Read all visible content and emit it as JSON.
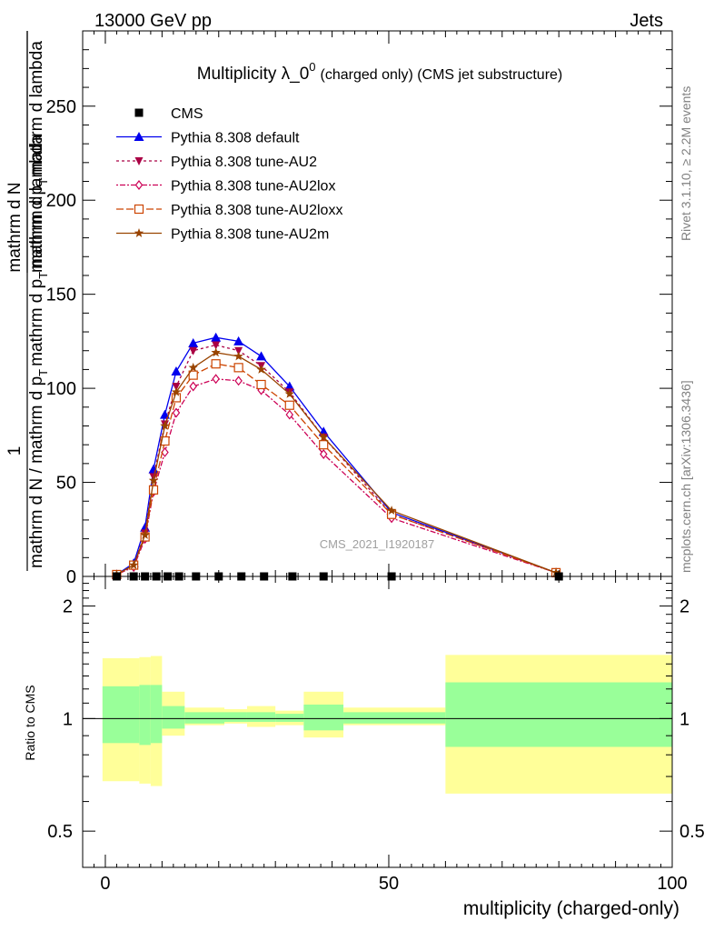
{
  "header": {
    "left": "13000 GeV pp",
    "right": "Jets"
  },
  "side_labels": {
    "upper": "Rivet 3.1.10, ≥ 2.2M events",
    "lower": "mcplots.cern.ch [arXiv:1306.3436]"
  },
  "watermark": "CMS_2021_I1920187",
  "colors": {
    "band_inner": "#99ff99",
    "band_outer": "#ffff99"
  },
  "chart_data": [
    {
      "type": "line",
      "title": "Multiplicity λ_0⁰",
      "title_parts": {
        "main": "Multiplicity λ_0",
        "sup": "0",
        "small": "(charged only) (CMS jet substructure)"
      },
      "ylabel_parts": {
        "num": "1",
        "den": "mathrm d N / mathrm d p_T mathrm d p_T mathrm d N",
        "den_a": "mathrm d N / mathrm d p",
        "den_sub1": "T",
        "den_b": "mathrm d p",
        "den_sub2": "T",
        "den_c": "mathrm d lambda",
        "num2": "mathrm d",
        "num3": "N",
        "den2": "mathrm d p",
        "den2_sub": "T",
        "den2_b": "mathrm d lambda"
      },
      "ylabel": "1 / mathrm d N / mathrm d p_T mathrm d p_T mathrm d N / mathrm d p_T mathrm d lambda",
      "xlim": [
        -4,
        100
      ],
      "ylim": [
        0,
        290
      ],
      "y_ticks": [
        0,
        50,
        100,
        150,
        200,
        250
      ],
      "legend_position": "top-left",
      "series": [
        {
          "name": "CMS",
          "color": "#000000",
          "marker": "square",
          "dash": "none",
          "x": [
            2,
            5,
            7,
            9,
            11,
            13,
            16,
            20,
            24,
            28,
            33,
            38.5,
            50.5,
            80
          ],
          "y": [
            0,
            0,
            0,
            0,
            0,
            0,
            0,
            0,
            0,
            0,
            0,
            0,
            0,
            0
          ]
        },
        {
          "name": "Pythia 8.308 default",
          "color": "#0000ee",
          "marker": "triangle-up",
          "dash": "none",
          "x": [
            2,
            5,
            7,
            8.5,
            10.5,
            12.5,
            15.5,
            19.5,
            23.5,
            27.5,
            32.5,
            38.5,
            50.5,
            79.5
          ],
          "y": [
            1,
            7,
            26,
            57,
            86,
            109,
            124,
            127,
            125,
            117,
            101,
            77,
            34,
            2
          ]
        },
        {
          "name": "Pythia 8.308 tune-AU2",
          "color": "#aa0044",
          "marker": "triangle-down",
          "dash": "3,3",
          "x": [
            2,
            5,
            7,
            8.5,
            10.5,
            12.5,
            15.5,
            19.5,
            23.5,
            27.5,
            32.5,
            38.5,
            50.5,
            79.5
          ],
          "y": [
            1,
            6,
            23,
            53,
            81,
            101,
            120,
            123,
            120,
            112,
            98,
            74,
            33,
            2
          ]
        },
        {
          "name": "Pythia 8.308 tune-AU2lox",
          "color": "#cc0055",
          "marker": "diamond",
          "dash": "2,2,6,2",
          "x": [
            2,
            5,
            7,
            8.5,
            10.5,
            12.5,
            15.5,
            19.5,
            23.5,
            27.5,
            32.5,
            38.5,
            50.5,
            79.5
          ],
          "y": [
            1,
            5,
            20,
            45,
            66,
            87,
            101,
            105,
            104,
            99,
            86,
            65,
            31,
            2
          ]
        },
        {
          "name": "Pythia 8.308 tune-AU2loxx",
          "color": "#cc4400",
          "marker": "square-open",
          "dash": "8,3",
          "x": [
            2,
            5,
            7,
            8.5,
            10.5,
            12.5,
            15.5,
            19.5,
            23.5,
            27.5,
            32.5,
            38.5,
            50.5,
            79.5
          ],
          "y": [
            1,
            6,
            21,
            46,
            72,
            95,
            107,
            113,
            111,
            102,
            91,
            70,
            33,
            2
          ]
        },
        {
          "name": "Pythia 8.308 tune-AU2m",
          "color": "#994400",
          "marker": "star",
          "dash": "none",
          "x": [
            2,
            5,
            7,
            8.5,
            10.5,
            12.5,
            15.5,
            19.5,
            23.5,
            27.5,
            32.5,
            38.5,
            50.5,
            79.5
          ],
          "y": [
            1,
            6,
            22,
            51,
            80,
            98,
            111,
            119,
            117,
            110,
            97,
            74,
            35,
            2
          ]
        }
      ]
    },
    {
      "type": "area",
      "ylabel": "Ratio to CMS",
      "xlabel": "multiplicity (charged-only)",
      "xlim": [
        -4,
        100
      ],
      "ylim": [
        0.4,
        2.4
      ],
      "log_y": true,
      "x_ticks": [
        0,
        50,
        100
      ],
      "y_ticks": [
        0.5,
        1,
        2
      ],
      "reference": 1,
      "bins": [
        {
          "x0": -0.5,
          "x1": 6,
          "outer": [
            0.68,
            1.45
          ],
          "inner": [
            0.86,
            1.22
          ]
        },
        {
          "x0": 6,
          "x1": 8,
          "outer": [
            0.67,
            1.46
          ],
          "inner": [
            0.85,
            1.23
          ]
        },
        {
          "x0": 8,
          "x1": 10,
          "outer": [
            0.66,
            1.47
          ],
          "inner": [
            0.86,
            1.23
          ]
        },
        {
          "x0": 10,
          "x1": 14,
          "outer": [
            0.9,
            1.18
          ],
          "inner": [
            0.94,
            1.08
          ]
        },
        {
          "x0": 14,
          "x1": 21,
          "outer": [
            0.96,
            1.07
          ],
          "inner": [
            0.97,
            1.04
          ]
        },
        {
          "x0": 21,
          "x1": 25,
          "outer": [
            0.97,
            1.06
          ],
          "inner": [
            0.98,
            1.04
          ]
        },
        {
          "x0": 25,
          "x1": 30,
          "outer": [
            0.95,
            1.08
          ],
          "inner": [
            0.98,
            1.04
          ]
        },
        {
          "x0": 30,
          "x1": 35,
          "outer": [
            0.96,
            1.05
          ],
          "inner": [
            0.98,
            1.03
          ]
        },
        {
          "x0": 35,
          "x1": 42,
          "outer": [
            0.89,
            1.18
          ],
          "inner": [
            0.93,
            1.09
          ]
        },
        {
          "x0": 42,
          "x1": 60,
          "outer": [
            0.96,
            1.07
          ],
          "inner": [
            0.97,
            1.04
          ]
        },
        {
          "x0": 60,
          "x1": 100,
          "outer": [
            0.63,
            1.48
          ],
          "inner": [
            0.84,
            1.25
          ]
        }
      ]
    }
  ]
}
